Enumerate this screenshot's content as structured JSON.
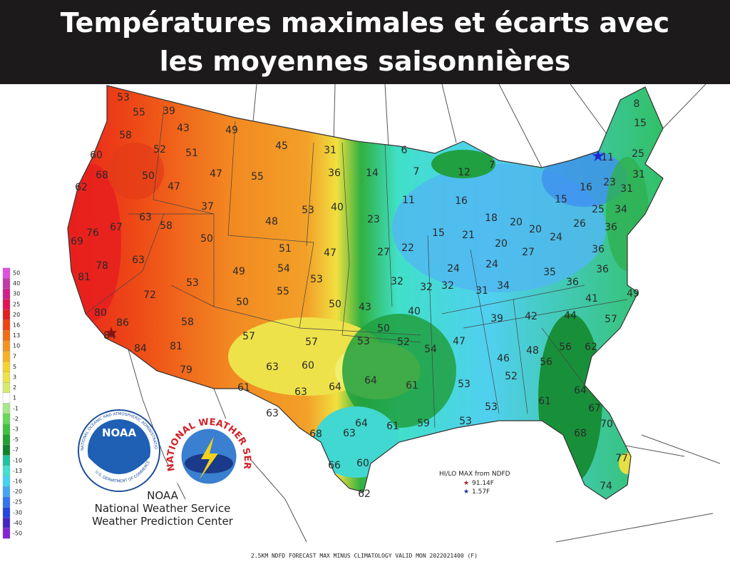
{
  "header": {
    "title_lines": [
      "Températures maximales et écarts avec",
      "les moyennes saisonnières"
    ]
  },
  "map": {
    "labels": [
      53,
      55,
      39,
      43,
      49,
      58,
      52,
      51,
      45,
      31,
      60,
      50,
      47,
      55,
      36,
      14,
      6,
      7,
      12,
      7,
      11,
      8,
      15,
      25,
      31,
      68,
      62,
      47,
      37,
      53,
      40,
      11,
      16,
      16,
      23,
      31,
      15,
      25,
      34,
      63,
      58,
      48,
      23,
      18,
      20,
      20,
      26,
      36,
      76,
      67,
      50,
      15,
      21,
      24,
      69,
      51,
      47,
      27,
      22,
      20,
      27,
      36,
      78,
      63,
      49,
      54,
      53,
      24,
      24,
      35,
      36,
      81,
      53,
      55,
      32,
      32,
      32,
      31,
      34,
      36,
      72,
      50,
      50,
      43,
      40,
      41,
      49,
      80,
      86,
      39,
      42,
      44,
      57,
      58,
      50,
      84,
      57,
      57,
      53,
      52,
      54,
      47,
      48,
      56,
      62,
      84,
      81,
      46,
      56,
      63,
      60,
      79,
      64,
      52,
      61,
      63,
      64,
      61,
      53,
      64,
      53,
      61,
      67,
      63,
      70,
      64,
      61,
      59,
      53,
      68,
      63,
      68,
      77,
      66,
      60,
      74,
      62
    ]
  },
  "legend": {
    "values": [
      50,
      40,
      30,
      25,
      20,
      16,
      13,
      10,
      7,
      5,
      3,
      2,
      1,
      -1,
      -2,
      -3,
      -5,
      -7,
      -10,
      -13,
      -16,
      -20,
      -25,
      -30,
      -40,
      -50
    ],
    "colors": [
      "#e050e0",
      "#c03aa8",
      "#d0208a",
      "#e01454",
      "#e0201e",
      "#ee4414",
      "#f06e12",
      "#f29222",
      "#f4b228",
      "#f4d232",
      "#ece24a",
      "#d6ea6c",
      "#ffffff",
      "#a8e68a",
      "#68d85a",
      "#40c040",
      "#22a030",
      "#10822e",
      "#22c2a0",
      "#44e0d2",
      "#44d2f2",
      "#44a6f2",
      "#3474f0",
      "#2244e0",
      "#4424c4",
      "#8424d4"
    ]
  },
  "logos": {
    "noaa_badge": "NOAA",
    "noaa_ring": "NATIONAL OCEANIC AND ATMOSPHERIC ADMINISTRATION",
    "noaa_dept": "U.S. DEPARTMENT OF COMMERCE",
    "nws_ring": "NATIONAL WEATHER SERVICE",
    "agency_lines": [
      "NOAA",
      "National Weather Service",
      "Weather Prediction Center"
    ]
  },
  "hilo": {
    "title": "HI/LO MAX from NDFD",
    "high": "91.14F",
    "low": "1.57F"
  },
  "footer": "2.5KM NDFD FORECAST MAX MINUS CLIMATOLOGY VALID MON 2022021400 (F)"
}
